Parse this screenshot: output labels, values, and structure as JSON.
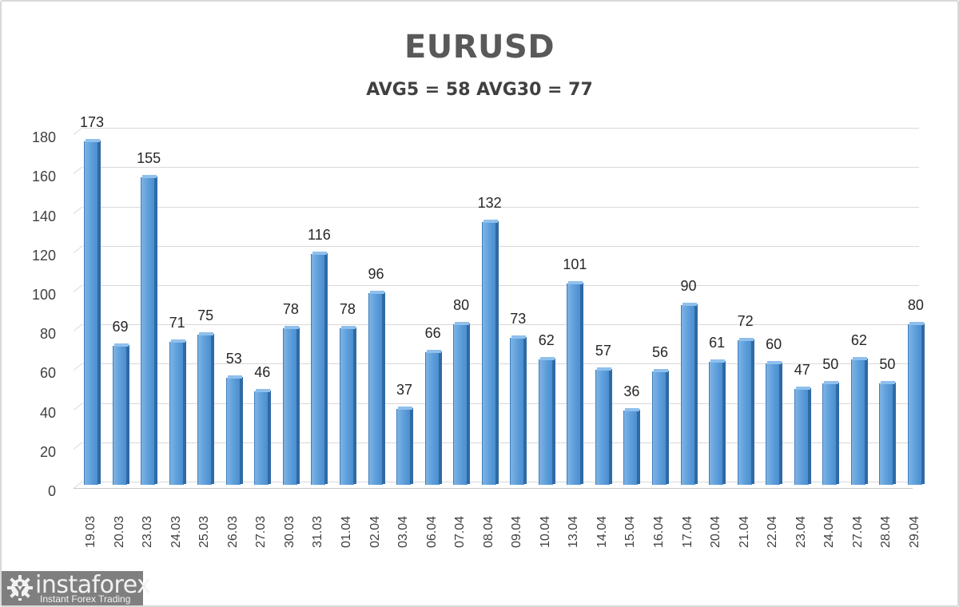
{
  "header": {
    "title": "EURUSD",
    "subtitle": "AVG5 = 58 AVG30 = 77"
  },
  "logo": {
    "name": "instaforex",
    "tagline": "Instant Forex Trading",
    "icon": "gear-person-icon"
  },
  "colors": {
    "bar": "#5b9bd5",
    "bar_dark": "#2f6aa5",
    "title": "#595959",
    "grid": "#d9d9d9",
    "logo_bg": "#7f7f7f"
  },
  "chart_data": {
    "type": "bar",
    "title": "EURUSD",
    "subtitle": "AVG5 = 58 AVG30 = 77",
    "xlabel": "",
    "ylabel": "",
    "ylim": [
      0,
      180
    ],
    "yticks": [
      0,
      20,
      40,
      60,
      80,
      100,
      120,
      140,
      160,
      180
    ],
    "grid": true,
    "legend": "none",
    "style": "3d-column",
    "categories": [
      "19.03",
      "20.03",
      "23.03",
      "24.03",
      "25.03",
      "26.03",
      "27.03",
      "30.03",
      "31.03",
      "01.04",
      "02.04",
      "03.04",
      "06.04",
      "07.04",
      "08.04",
      "09.04",
      "10.04",
      "13.04",
      "14.04",
      "15.04",
      "16.04",
      "17.04",
      "20.04",
      "21.04",
      "22.04",
      "23.04",
      "24.04",
      "27.04",
      "28.04",
      "29.04"
    ],
    "values": [
      173,
      69,
      155,
      71,
      75,
      53,
      46,
      78,
      116,
      78,
      96,
      37,
      66,
      80,
      132,
      73,
      62,
      101,
      57,
      36,
      56,
      90,
      61,
      72,
      60,
      47,
      50,
      62,
      50,
      80
    ]
  }
}
